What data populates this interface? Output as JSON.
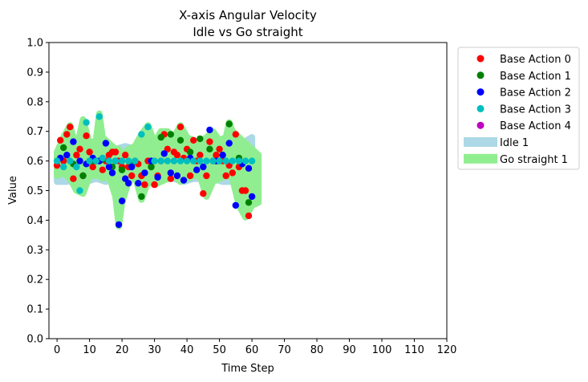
{
  "chart_data": {
    "type": "scatter",
    "title": "X-axis Angular Velocity",
    "subtitle": "Idle vs Go straight",
    "xlabel": "Time Step",
    "ylabel": "Value",
    "xlim": [
      -2.5,
      120
    ],
    "ylim": [
      0,
      1
    ],
    "xticks": [
      "0",
      "10",
      "20",
      "30",
      "40",
      "50",
      "60",
      "70",
      "80",
      "90",
      "100",
      "110",
      "120"
    ],
    "yticks": [
      "0.0",
      "0.1",
      "0.2",
      "0.3",
      "0.4",
      "0.5",
      "0.6",
      "0.7",
      "0.8",
      "0.9",
      "1.0"
    ],
    "grid": false,
    "legend_position": "outside-right",
    "legend": [
      {
        "label": "Base Action 0",
        "kind": "marker",
        "color": "#ff0000"
      },
      {
        "label": "Base Action 1",
        "kind": "marker",
        "color": "#008000"
      },
      {
        "label": "Base Action 2",
        "kind": "marker",
        "color": "#0000ff"
      },
      {
        "label": "Base Action 3",
        "kind": "marker",
        "color": "#00bfbf"
      },
      {
        "label": "Base Action 4",
        "kind": "marker",
        "color": "#bf00bf"
      },
      {
        "label": "Idle 1",
        "kind": "band",
        "color": "#add8e6"
      },
      {
        "label": "Go straight 1",
        "kind": "band",
        "color": "#90ee90"
      }
    ],
    "bands": [
      {
        "name": "Idle 1",
        "color": "#add8e6",
        "x": [
          0,
          3,
          6,
          9,
          12,
          15,
          18,
          21,
          24,
          27,
          30,
          33,
          36,
          39,
          42,
          45,
          48,
          51,
          54,
          57,
          60
        ],
        "low": [
          0.53,
          0.53,
          0.54,
          0.53,
          0.54,
          0.53,
          0.54,
          0.53,
          0.54,
          0.55,
          0.54,
          0.54,
          0.54,
          0.53,
          0.54,
          0.54,
          0.54,
          0.53,
          0.53,
          0.53,
          0.53
        ],
        "high": [
          0.63,
          0.64,
          0.64,
          0.65,
          0.64,
          0.65,
          0.64,
          0.65,
          0.64,
          0.64,
          0.64,
          0.65,
          0.64,
          0.65,
          0.64,
          0.64,
          0.65,
          0.65,
          0.66,
          0.66,
          0.68
        ]
      },
      {
        "name": "Go straight 1",
        "color": "#90ee90",
        "x": [
          0,
          2,
          4,
          6,
          8,
          10,
          12,
          13,
          14,
          16,
          18,
          19,
          20,
          22,
          24,
          26,
          28,
          30,
          32,
          34,
          36,
          38,
          40,
          42,
          44,
          46,
          48,
          50,
          52,
          53,
          54,
          56,
          58,
          60,
          62
        ],
        "low": [
          0.55,
          0.56,
          0.54,
          0.5,
          0.49,
          0.55,
          0.55,
          0.55,
          0.54,
          0.55,
          0.48,
          0.38,
          0.46,
          0.53,
          0.55,
          0.47,
          0.53,
          0.52,
          0.53,
          0.54,
          0.55,
          0.53,
          0.54,
          0.55,
          0.55,
          0.48,
          0.53,
          0.54,
          0.55,
          0.55,
          0.54,
          0.45,
          0.41,
          0.45,
          0.46
        ],
        "high": [
          0.63,
          0.68,
          0.72,
          0.64,
          0.74,
          0.66,
          0.67,
          0.76,
          0.68,
          0.66,
          0.64,
          0.64,
          0.62,
          0.64,
          0.65,
          0.69,
          0.72,
          0.66,
          0.7,
          0.7,
          0.68,
          0.72,
          0.68,
          0.67,
          0.66,
          0.68,
          0.7,
          0.67,
          0.68,
          0.73,
          0.7,
          0.68,
          0.66,
          0.64,
          0.62
        ]
      }
    ],
    "series": [
      {
        "name": "Base Action 0",
        "color": "#ff0000",
        "x": [
          0,
          1,
          2,
          3,
          4,
          5,
          6,
          7,
          8,
          9,
          10,
          11,
          12,
          13,
          14,
          15,
          16,
          17,
          18,
          19,
          20,
          21,
          22,
          23,
          24,
          25,
          26,
          27,
          28,
          29,
          30,
          31,
          32,
          33,
          34,
          35,
          36,
          37,
          38,
          39,
          40,
          41,
          42,
          43,
          44,
          45,
          46,
          47,
          48,
          49,
          50,
          51,
          52,
          53,
          54,
          55,
          56,
          57,
          58,
          59
        ],
        "y": [
          0.585,
          0.67,
          0.6,
          0.69,
          0.715,
          0.54,
          0.62,
          0.64,
          0.55,
          0.685,
          0.63,
          0.58,
          0.6,
          0.6,
          0.57,
          0.6,
          0.62,
          0.63,
          0.63,
          0.6,
          0.58,
          0.62,
          0.58,
          0.55,
          0.6,
          0.59,
          0.55,
          0.52,
          0.6,
          0.58,
          0.52,
          0.55,
          0.6,
          0.69,
          0.64,
          0.54,
          0.63,
          0.62,
          0.715,
          0.61,
          0.64,
          0.55,
          0.67,
          0.6,
          0.62,
          0.49,
          0.55,
          0.665,
          0.6,
          0.62,
          0.64,
          0.6,
          0.55,
          0.585,
          0.56,
          0.69,
          0.58,
          0.5,
          0.5,
          0.415
        ]
      },
      {
        "name": "Base Action 1",
        "color": "#008000",
        "x": [
          2,
          5,
          8,
          11,
          14,
          17,
          20,
          23,
          26,
          29,
          32,
          35,
          38,
          41,
          44,
          47,
          50,
          53,
          56,
          59
        ],
        "y": [
          0.645,
          0.59,
          0.55,
          0.6,
          0.605,
          0.58,
          0.57,
          0.59,
          0.48,
          0.58,
          0.68,
          0.69,
          0.67,
          0.63,
          0.675,
          0.64,
          0.6,
          0.725,
          0.61,
          0.46
        ]
      },
      {
        "name": "Base Action 2",
        "color": "#0000ff",
        "x": [
          1,
          3,
          5,
          7,
          9,
          11,
          13,
          15,
          16,
          17,
          18,
          19,
          20,
          21,
          22,
          23,
          25,
          27,
          29,
          31,
          33,
          35,
          37,
          39,
          41,
          43,
          45,
          47,
          49,
          51,
          53,
          55,
          57,
          59,
          60
        ],
        "y": [
          0.61,
          0.62,
          0.665,
          0.6,
          0.59,
          0.61,
          0.6,
          0.66,
          0.58,
          0.56,
          0.6,
          0.385,
          0.465,
          0.54,
          0.525,
          0.58,
          0.525,
          0.56,
          0.6,
          0.545,
          0.625,
          0.56,
          0.55,
          0.535,
          0.61,
          0.57,
          0.58,
          0.705,
          0.6,
          0.62,
          0.66,
          0.45,
          0.59,
          0.575,
          0.48
        ]
      },
      {
        "name": "Base Action 3",
        "color": "#00bfbf",
        "x": [
          0,
          2,
          4,
          6,
          7,
          9,
          10,
          12,
          13,
          14,
          16,
          18,
          20,
          22,
          24,
          26,
          28,
          30,
          32,
          34,
          36,
          38,
          40,
          42,
          44,
          46,
          48,
          50,
          52,
          54,
          56,
          58,
          60
        ],
        "y": [
          0.6,
          0.58,
          0.6,
          0.58,
          0.5,
          0.73,
          0.6,
          0.6,
          0.75,
          0.61,
          0.6,
          0.6,
          0.6,
          0.6,
          0.6,
          0.69,
          0.715,
          0.6,
          0.6,
          0.6,
          0.6,
          0.6,
          0.6,
          0.6,
          0.6,
          0.6,
          0.6,
          0.6,
          0.6,
          0.6,
          0.6,
          0.6,
          0.6
        ]
      },
      {
        "name": "Base Action 4",
        "color": "#bf00bf",
        "x": [],
        "y": []
      }
    ]
  }
}
